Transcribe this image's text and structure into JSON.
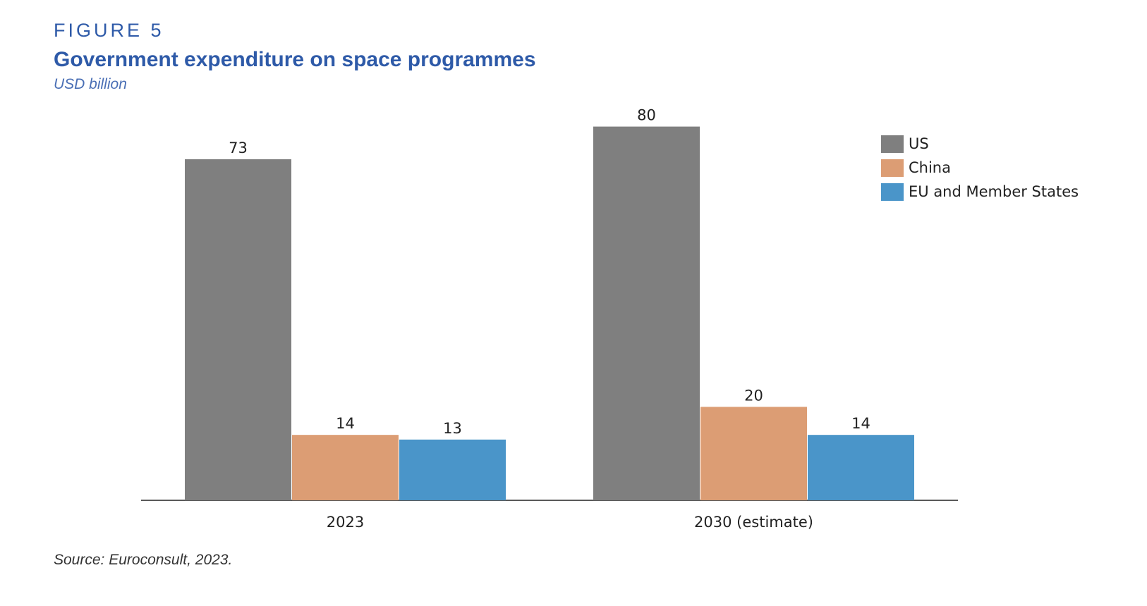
{
  "figure_label": "FIGURE 5",
  "source": "Source: Euroconsult, 2023.",
  "colors": {
    "US": "#7f7f7f",
    "China": "#dc9d74",
    "EU": "#4a95c9",
    "title": "#2e5aa8"
  },
  "chart_data": {
    "type": "bar",
    "title": "Government expenditure on space programmes",
    "subtitle": "USD billion",
    "xlabel": "",
    "ylabel": "",
    "ylim": [
      0,
      80
    ],
    "grid": false,
    "legend_position": "top-right",
    "categories": [
      "2023",
      "2030 (estimate)"
    ],
    "series": [
      {
        "name": "US",
        "values": [
          73,
          80
        ]
      },
      {
        "name": "China",
        "values": [
          14,
          20
        ]
      },
      {
        "name": "EU and Member States",
        "values": [
          13,
          14
        ]
      }
    ]
  }
}
